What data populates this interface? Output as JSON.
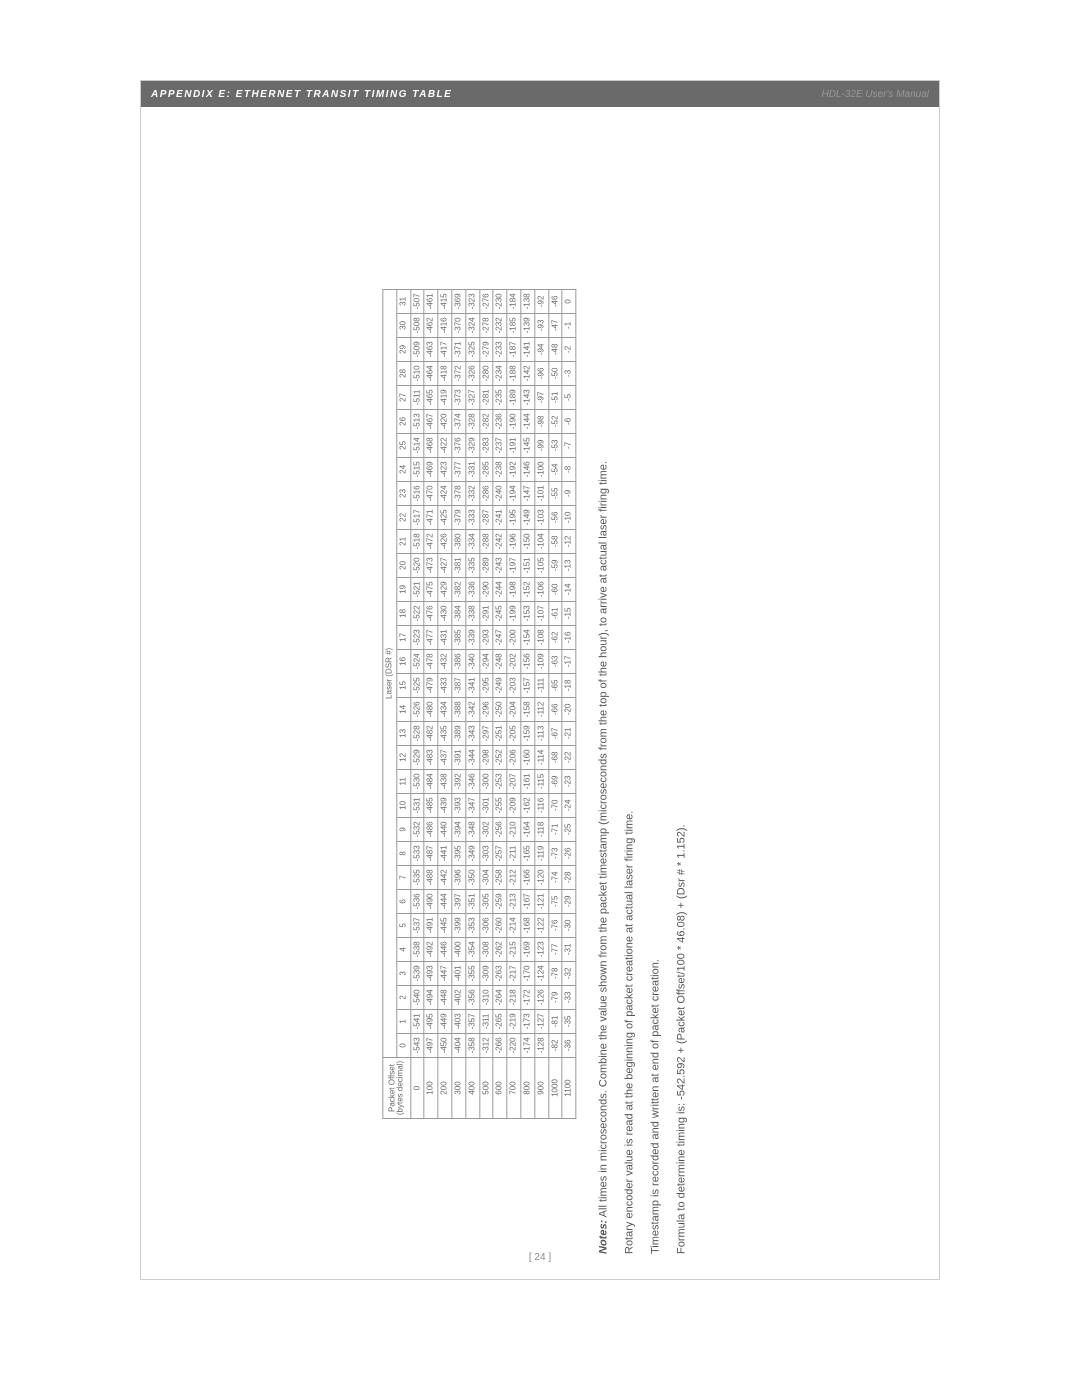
{
  "header": {
    "appendix_title": "APPENDIX E: ETHERNET TRANSIT TIMING TABLE",
    "manual_title": "HDL-32E User's Manual"
  },
  "table": {
    "row_header_line1": "Packet Offset",
    "row_header_line2": "(bytes decimal)",
    "super_header": "Laser (DSR #)",
    "col_offsets": [
      "0",
      "100",
      "200",
      "300",
      "400",
      "500",
      "600",
      "700",
      "800",
      "900",
      "1000",
      "1100"
    ],
    "laser_numbers": [
      "0",
      "1",
      "2",
      "3",
      "4",
      "5",
      "6",
      "7",
      "8",
      "9",
      "10",
      "11",
      "12",
      "13",
      "14",
      "15",
      "16",
      "17",
      "18",
      "19",
      "20",
      "21",
      "22",
      "23",
      "24",
      "25",
      "26",
      "27",
      "28",
      "29",
      "30",
      "31"
    ],
    "rows": [
      [
        "-543",
        "-541",
        "-540",
        "-539",
        "-538",
        "-537",
        "-536",
        "-535",
        "-533",
        "-532",
        "-531",
        "-530",
        "-529",
        "-528",
        "-526",
        "-525",
        "-524",
        "-523",
        "-522",
        "-521",
        "-520",
        "-518",
        "-517",
        "-516",
        "-515",
        "-514",
        "-513",
        "-511",
        "-510",
        "-509",
        "-508",
        "-507"
      ],
      [
        "-497",
        "-495",
        "-494",
        "-493",
        "-492",
        "-491",
        "-490",
        "-488",
        "-487",
        "-486",
        "-485",
        "-484",
        "-483",
        "-482",
        "-480",
        "-479",
        "-478",
        "-477",
        "-476",
        "-475",
        "-473",
        "-472",
        "-471",
        "-470",
        "-469",
        "-468",
        "-467",
        "-465",
        "-464",
        "-463",
        "-462",
        "-461"
      ],
      [
        "-450",
        "-449",
        "-448",
        "-447",
        "-446",
        "-445",
        "-444",
        "-442",
        "-441",
        "-440",
        "-439",
        "-438",
        "-437",
        "-435",
        "-434",
        "-433",
        "-432",
        "-431",
        "-430",
        "-429",
        "-427",
        "-426",
        "-425",
        "-424",
        "-423",
        "-422",
        "-420",
        "-419",
        "-418",
        "-417",
        "-416",
        "-415"
      ],
      [
        "-404",
        "-403",
        "-402",
        "-401",
        "-400",
        "-399",
        "-397",
        "-396",
        "-395",
        "-394",
        "-393",
        "-392",
        "-391",
        "-389",
        "-388",
        "-387",
        "-386",
        "-385",
        "-384",
        "-382",
        "-381",
        "-380",
        "-379",
        "-378",
        "-377",
        "-376",
        "-374",
        "-373",
        "-372",
        "-371",
        "-370",
        "-369"
      ],
      [
        "-358",
        "-357",
        "-356",
        "-355",
        "-354",
        "-353",
        "-351",
        "-350",
        "-349",
        "-348",
        "-347",
        "-346",
        "-344",
        "-343",
        "-342",
        "-341",
        "-340",
        "-339",
        "-338",
        "-336",
        "-335",
        "-334",
        "-333",
        "-332",
        "-331",
        "-329",
        "-328",
        "-327",
        "-326",
        "-325",
        "-324",
        "-323"
      ],
      [
        "-312",
        "-311",
        "-310",
        "-309",
        "-308",
        "-306",
        "-305",
        "-304",
        "-303",
        "-302",
        "-301",
        "-300",
        "-298",
        "-297",
        "-296",
        "-295",
        "-294",
        "-293",
        "-291",
        "-290",
        "-289",
        "-288",
        "-287",
        "-286",
        "-285",
        "-283",
        "-282",
        "-281",
        "-280",
        "-279",
        "-278",
        "-276"
      ],
      [
        "-266",
        "-265",
        "-264",
        "-263",
        "-262",
        "-260",
        "-259",
        "-258",
        "-257",
        "-256",
        "-255",
        "-253",
        "-252",
        "-251",
        "-250",
        "-249",
        "-248",
        "-247",
        "-245",
        "-244",
        "-243",
        "-242",
        "-241",
        "-240",
        "-238",
        "-237",
        "-236",
        "-235",
        "-234",
        "-233",
        "-232",
        "-230"
      ],
      [
        "-220",
        "-219",
        "-218",
        "-217",
        "-215",
        "-214",
        "-213",
        "-212",
        "-211",
        "-210",
        "-209",
        "-207",
        "-206",
        "-205",
        "-204",
        "-203",
        "-202",
        "-200",
        "-199",
        "-198",
        "-197",
        "-196",
        "-195",
        "-194",
        "-192",
        "-191",
        "-190",
        "-189",
        "-188",
        "-187",
        "-185",
        "-184"
      ],
      [
        "-174",
        "-173",
        "-172",
        "-170",
        "-169",
        "-168",
        "-167",
        "-166",
        "-165",
        "-164",
        "-162",
        "-161",
        "-160",
        "-159",
        "-158",
        "-157",
        "-156",
        "-154",
        "-153",
        "-152",
        "-151",
        "-150",
        "-149",
        "-147",
        "-146",
        "-145",
        "-144",
        "-143",
        "-142",
        "-141",
        "-139",
        "-138"
      ],
      [
        "-128",
        "-127",
        "-126",
        "-124",
        "-123",
        "-122",
        "-121",
        "-120",
        "-119",
        "-118",
        "-116",
        "-115",
        "-114",
        "-113",
        "-112",
        "-111",
        "-109",
        "-108",
        "-107",
        "-106",
        "-105",
        "-104",
        "-103",
        "-101",
        "-100",
        "-99",
        "-98",
        "-97",
        "-96",
        "-94",
        "-93",
        "-92"
      ],
      [
        "-82",
        "-81",
        "-79",
        "-78",
        "-77",
        "-76",
        "-75",
        "-74",
        "-73",
        "-71",
        "-70",
        "-69",
        "-68",
        "-67",
        "-66",
        "-65",
        "-63",
        "-62",
        "-61",
        "-60",
        "-59",
        "-58",
        "-56",
        "-55",
        "-54",
        "-53",
        "-52",
        "-51",
        "-50",
        "-48",
        "-47",
        "-46"
      ],
      [
        "-36",
        "-35",
        "-33",
        "-32",
        "-31",
        "-30",
        "-29",
        "-28",
        "-26",
        "-25",
        "-24",
        "-23",
        "-22",
        "-21",
        "-20",
        "-18",
        "-17",
        "-16",
        "-15",
        "-14",
        "-13",
        "-12",
        "-10",
        "-9",
        "-8",
        "-7",
        "-6",
        "-5",
        "-3",
        "-2",
        "-1",
        "0"
      ]
    ]
  },
  "notes": {
    "notes_label": "Notes:",
    "line1": " All times in microseconds.  Combine the value shown from the packet timestamp (microseconds from the top of the hour), to arrive at actual laser firing time.",
    "line2": "Rotary encoder value is read at the beginning of packet creatione at actual laser firing time.",
    "line3": "Timestamp is recorded and written at end of packet creation.",
    "line4": "Formula to determine timing is: -542.592 + (Packet Offset/100 * 46.08) + (Dsr # * 1.152)."
  },
  "footer": {
    "page_number": "[ 24 ]"
  },
  "style": {
    "header_bg": "#6a6a6a",
    "header_fg": "#ffffff",
    "text_color": "#666666",
    "border_color": "#999999"
  }
}
